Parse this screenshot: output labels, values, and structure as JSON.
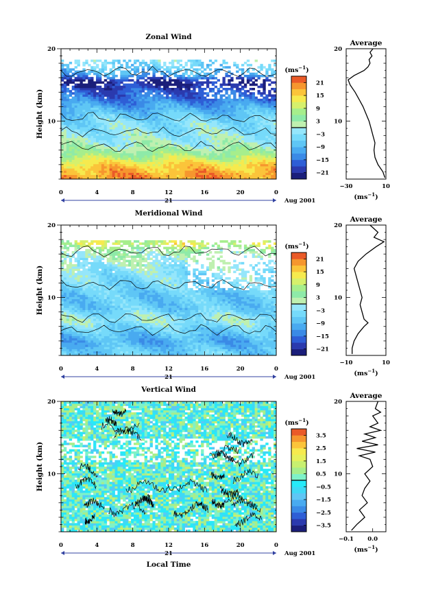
{
  "chart_data": [
    {
      "type": "heatmap",
      "title": "Zonal Wind",
      "ylabel": "Height (km)",
      "ylim": [
        2,
        20
      ],
      "yticks": [
        {
          "v": 10,
          "t": "10"
        },
        {
          "v": 20,
          "t": "20"
        }
      ],
      "x_ticks": [
        "0",
        "4",
        "8",
        "12",
        "16",
        "20",
        "0"
      ],
      "xlim": [
        0,
        24
      ],
      "day_label": "21",
      "date_label": "Aug 2001",
      "colorbar": {
        "unit_label": "(ms",
        "unit_exp": "−1",
        "levels": [
          -24,
          -21,
          -18,
          -15,
          -12,
          -9,
          -6,
          -3,
          0,
          3,
          6,
          9,
          12,
          15,
          18,
          21,
          24
        ],
        "ticks": [
          "−21",
          "−15",
          "−9",
          "−3",
          "3",
          "9",
          "15",
          "21"
        ],
        "tick_values": [
          -21,
          -15,
          -9,
          -3,
          3,
          9,
          15,
          21
        ]
      },
      "approx_profile": [
        {
          "z": 2.5,
          "u": 19
        },
        {
          "z": 4,
          "u": 15
        },
        {
          "z": 5.5,
          "u": 6
        },
        {
          "z": 7,
          "u": 0
        },
        {
          "z": 8.5,
          "u": -2
        },
        {
          "z": 10,
          "u": -4
        },
        {
          "z": 11.5,
          "u": -9
        },
        {
          "z": 13,
          "u": -14
        },
        {
          "z": 14.5,
          "u": -18
        },
        {
          "z": 15.5,
          "u": -22
        },
        {
          "z": 16.5,
          "u": -10
        },
        {
          "z": 17.5,
          "u": -6
        },
        {
          "z": 18.5,
          "u": -3
        }
      ],
      "data_top_km": 18.5,
      "average": {
        "title": "Average",
        "xlim": [
          -30,
          10
        ],
        "xticks": [
          {
            "v": -30,
            "t": "−30"
          },
          {
            "v": 10,
            "t": "10"
          }
        ],
        "xlabel": "(ms",
        "xlabel_exp": "−1",
        "profile": [
          {
            "z": 2.2,
            "v": 9
          },
          {
            "z": 3,
            "v": 7
          },
          {
            "z": 4,
            "v": 2
          },
          {
            "z": 5,
            "v": -1
          },
          {
            "z": 6,
            "v": -2
          },
          {
            "z": 7,
            "v": -1
          },
          {
            "z": 8,
            "v": -3
          },
          {
            "z": 9,
            "v": -5
          },
          {
            "z": 10,
            "v": -7
          },
          {
            "z": 11,
            "v": -10
          },
          {
            "z": 12,
            "v": -13
          },
          {
            "z": 13,
            "v": -17
          },
          {
            "z": 14,
            "v": -21
          },
          {
            "z": 15,
            "v": -26
          },
          {
            "z": 15.7,
            "v": -28
          },
          {
            "z": 16.3,
            "v": -22
          },
          {
            "z": 17,
            "v": -12
          },
          {
            "z": 17.5,
            "v": -8
          },
          {
            "z": 18,
            "v": -6
          },
          {
            "z": 18.5,
            "v": -7
          },
          {
            "z": 19,
            "v": -4
          },
          {
            "z": 19.5,
            "v": -6
          },
          {
            "z": 20,
            "v": -3
          }
        ]
      }
    },
    {
      "type": "heatmap",
      "title": "Meridional Wind",
      "ylabel": "Height (km)",
      "ylim": [
        2,
        20
      ],
      "yticks": [
        {
          "v": 10,
          "t": "10"
        },
        {
          "v": 20,
          "t": "20"
        }
      ],
      "x_ticks": [
        "0",
        "4",
        "8",
        "12",
        "16",
        "20",
        "0"
      ],
      "xlim": [
        0,
        24
      ],
      "day_label": "21",
      "date_label": "Aug 2001",
      "colorbar": {
        "unit_label": "(ms",
        "unit_exp": "−1",
        "levels": [
          -24,
          -21,
          -18,
          -15,
          -12,
          -9,
          -6,
          -3,
          0,
          3,
          6,
          9,
          12,
          15,
          18,
          21,
          24
        ],
        "ticks": [
          "−21",
          "−15",
          "−9",
          "−3",
          "3",
          "9",
          "15",
          "21"
        ],
        "tick_values": [
          -21,
          -15,
          -9,
          -3,
          3,
          9,
          15,
          21
        ]
      },
      "approx_profile": [
        {
          "z": 2.5,
          "u": -6
        },
        {
          "z": 4,
          "u": -10
        },
        {
          "z": 5.5,
          "u": -6
        },
        {
          "z": 7,
          "u": -1
        },
        {
          "z": 8.5,
          "u": -6
        },
        {
          "z": 10,
          "u": -7
        },
        {
          "z": 11.5,
          "u": -5
        },
        {
          "z": 13,
          "u": -3
        },
        {
          "z": 14.5,
          "u": -1
        },
        {
          "z": 15.5,
          "u": 1
        },
        {
          "z": 16.5,
          "u": 3
        },
        {
          "z": 17.5,
          "u": 11
        },
        {
          "z": 18.5,
          "u": 2
        }
      ],
      "data_top_km": 17.8,
      "average": {
        "title": "Average",
        "xlim": [
          -10,
          10
        ],
        "xticks": [
          {
            "v": -10,
            "t": "−10"
          },
          {
            "v": 10,
            "t": "10"
          }
        ],
        "xlabel": "(ms",
        "xlabel_exp": "−1",
        "profile": [
          {
            "z": 2.2,
            "v": -7
          },
          {
            "z": 3,
            "v": -7
          },
          {
            "z": 4,
            "v": -6
          },
          {
            "z": 5,
            "v": -4
          },
          {
            "z": 6,
            "v": -1
          },
          {
            "z": 6.5,
            "v": 1
          },
          {
            "z": 7,
            "v": -1
          },
          {
            "z": 8,
            "v": -2
          },
          {
            "z": 9,
            "v": -3
          },
          {
            "z": 10,
            "v": -2
          },
          {
            "z": 11,
            "v": -3
          },
          {
            "z": 12,
            "v": -4
          },
          {
            "z": 13,
            "v": -5
          },
          {
            "z": 14,
            "v": -6
          },
          {
            "z": 15,
            "v": -4
          },
          {
            "z": 16,
            "v": 0
          },
          {
            "z": 17,
            "v": 5
          },
          {
            "z": 17.7,
            "v": 9
          },
          {
            "z": 18.3,
            "v": 4
          },
          {
            "z": 19,
            "v": 6
          },
          {
            "z": 20,
            "v": 2
          }
        ]
      }
    },
    {
      "type": "heatmap",
      "title": "Vertical Wind",
      "ylabel": "Height (km)",
      "xlabel": "Local Time",
      "ylim": [
        2,
        20
      ],
      "yticks": [
        {
          "v": 10,
          "t": "10"
        },
        {
          "v": 20,
          "t": "20"
        }
      ],
      "x_ticks": [
        "0",
        "4",
        "8",
        "12",
        "16",
        "20",
        "0"
      ],
      "xlim": [
        0,
        24
      ],
      "day_label": "21",
      "date_label": "Aug 2001",
      "colorbar": {
        "unit_label": "(ms",
        "unit_exp": "−1",
        "levels": [
          -4,
          -3.5,
          -3,
          -2.5,
          -2,
          -1.5,
          -1,
          -0.5,
          0,
          0.5,
          1,
          1.5,
          2,
          2.5,
          3,
          3.5,
          4
        ],
        "ticks": [
          "−3.5",
          "−2.5",
          "−1.5",
          "−0.5",
          "0.5",
          "1.5",
          "2.5",
          "3.5"
        ],
        "tick_values": [
          -3.5,
          -2.5,
          -1.5,
          -0.5,
          0.5,
          1.5,
          2.5,
          3.5
        ]
      },
      "data_top_km": 20,
      "average": {
        "title": "Average",
        "xlim": [
          -0.1,
          0.05
        ],
        "xticks": [
          {
            "v": -0.1,
            "t": "−0.1"
          },
          {
            "v": 0.0,
            "t": "0.0"
          }
        ],
        "xlabel": "(ms",
        "xlabel_exp": "−1",
        "profile": [
          {
            "z": 2.2,
            "v": -0.08
          },
          {
            "z": 3,
            "v": -0.06
          },
          {
            "z": 4,
            "v": -0.03
          },
          {
            "z": 5,
            "v": -0.05
          },
          {
            "z": 6,
            "v": -0.02
          },
          {
            "z": 7,
            "v": -0.04
          },
          {
            "z": 8,
            "v": -0.03
          },
          {
            "z": 9,
            "v": -0.01
          },
          {
            "z": 10,
            "v": -0.03
          },
          {
            "z": 11,
            "v": 0.0
          },
          {
            "z": 12,
            "v": -0.01
          },
          {
            "z": 12.5,
            "v": -0.05
          },
          {
            "z": 13,
            "v": 0.01
          },
          {
            "z": 13.5,
            "v": -0.06
          },
          {
            "z": 14,
            "v": 0.02
          },
          {
            "z": 14.5,
            "v": -0.04
          },
          {
            "z": 15,
            "v": 0.01
          },
          {
            "z": 15.5,
            "v": -0.03
          },
          {
            "z": 16,
            "v": 0.03
          },
          {
            "z": 16.5,
            "v": -0.01
          },
          {
            "z": 17,
            "v": 0.02
          },
          {
            "z": 18,
            "v": 0.0
          },
          {
            "z": 18.5,
            "v": 0.03
          },
          {
            "z": 19,
            "v": 0.01
          },
          {
            "z": 20,
            "v": 0.02
          }
        ]
      }
    }
  ],
  "colors": {
    "palette": [
      "#1b1e7a",
      "#2b3aae",
      "#2e5ed6",
      "#3a8ae6",
      "#49aaf0",
      "#5fc6f5",
      "#76dafa",
      "#95e6fb",
      "#bff0b0",
      "#8eeaa8",
      "#a6ee8c",
      "#d6f06c",
      "#f6ea4e",
      "#fbc43a",
      "#f6962e",
      "#ea5a28"
    ],
    "vertical_palette": [
      "#1b1e7a",
      "#2b3aae",
      "#2e5ed6",
      "#3a8ae6",
      "#49aaf0",
      "#5fc6f5",
      "#3fd8f5",
      "#27eaf8",
      "#7ef2c8",
      "#a6ee8c",
      "#c8f070",
      "#e6f05c",
      "#f6ea4e",
      "#fbc43a",
      "#f6962e",
      "#ea5a28"
    ]
  }
}
